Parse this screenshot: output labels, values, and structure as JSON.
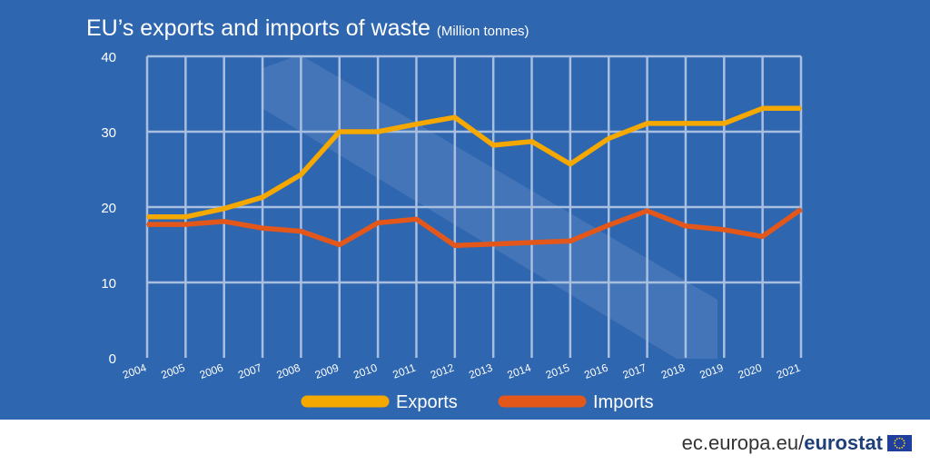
{
  "title": "EU’s exports and imports of waste",
  "subtitle": "(Million tonnes)",
  "footer": {
    "site": "ec.europa.eu/",
    "brand": "eurostat"
  },
  "colors": {
    "background": "#2f66b0",
    "exports": "#f5a800",
    "imports": "#e3581a",
    "grid": "#a9bfe0",
    "text": "#ffffff"
  },
  "icons": {
    "flag": "eu-flag-icon"
  },
  "chart_data": {
    "type": "line",
    "categories": [
      "2004",
      "2005",
      "2006",
      "2007",
      "2008",
      "2009",
      "2010",
      "2011",
      "2012",
      "2013",
      "2014",
      "2015",
      "2016",
      "2017",
      "2018",
      "2019",
      "2020",
      "2021"
    ],
    "series": [
      {
        "name": "Exports",
        "values": [
          18.7,
          18.7,
          19.8,
          21.3,
          24.3,
          30.0,
          30.0,
          31.0,
          31.9,
          28.2,
          28.7,
          25.7,
          29.1,
          31.1,
          31.1,
          31.1,
          33.1,
          33.1
        ]
      },
      {
        "name": "Imports",
        "values": [
          17.7,
          17.7,
          18.1,
          17.2,
          16.8,
          15.0,
          17.9,
          18.4,
          14.9,
          15.1,
          15.3,
          15.5,
          17.6,
          19.5,
          17.5,
          17.0,
          16.1,
          19.7
        ]
      }
    ],
    "yticks": [
      0,
      10,
      20,
      30,
      40
    ],
    "ylim": [
      0,
      40
    ],
    "grid": true,
    "legend": "bottom"
  }
}
